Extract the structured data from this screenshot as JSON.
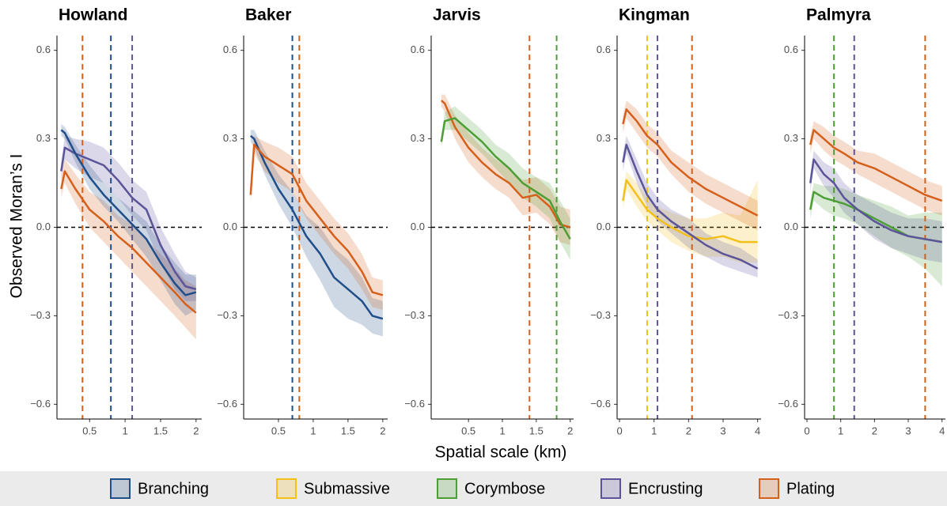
{
  "xlabel": "Spatial scale (km)",
  "ylabel": "Observed Moran’s I",
  "legend": [
    {
      "name": "Branching",
      "color": "#1f4e89"
    },
    {
      "name": "Submassive",
      "color": "#f2c018"
    },
    {
      "name": "Corymbose",
      "color": "#4d9e35"
    },
    {
      "name": "Encrusting",
      "color": "#5b5499"
    },
    {
      "name": "Plating",
      "color": "#d4601c"
    }
  ],
  "chart_data": [
    {
      "type": "line",
      "title": "Howland",
      "xlim": [
        0.04,
        2.08
      ],
      "xticks": [
        0.5,
        1,
        1.5,
        2
      ],
      "ylim": [
        -0.65,
        0.65
      ],
      "yticks": [
        {
          "value": -0.6,
          "label": "−0.6"
        },
        {
          "value": -0.3,
          "label": "−0.3"
        },
        {
          "value": 0,
          "label": "0.0"
        },
        0.3,
        0.6
      ],
      "hline": 0,
      "vlines": [
        {
          "value": 0.4,
          "color": "#d4601c"
        },
        {
          "value": 0.8,
          "color": "#1f4e89"
        },
        {
          "value": 1.1,
          "color": "#5b5499"
        }
      ],
      "x": [
        0.1,
        0.15,
        0.3,
        0.5,
        0.7,
        0.9,
        1.1,
        1.3,
        1.5,
        1.7,
        1.85,
        2.0
      ],
      "series": [
        {
          "name": "Plating",
          "color": "#d4601c",
          "values": [
            0.13,
            0.19,
            0.13,
            0.06,
            0.02,
            -0.03,
            -0.07,
            -0.12,
            -0.17,
            -0.22,
            -0.26,
            -0.29
          ],
          "lower": [
            0.1,
            0.15,
            0.08,
            0.0,
            -0.05,
            -0.1,
            -0.15,
            -0.2,
            -0.25,
            -0.3,
            -0.34,
            -0.38
          ],
          "upper": [
            0.16,
            0.23,
            0.18,
            0.12,
            0.09,
            0.04,
            0.01,
            -0.04,
            -0.09,
            -0.14,
            -0.18,
            -0.2
          ]
        },
        {
          "name": "Encrusting",
          "color": "#5b5499",
          "values": [
            0.19,
            0.27,
            0.25,
            0.23,
            0.21,
            0.16,
            0.1,
            0.06,
            -0.06,
            -0.15,
            -0.2,
            -0.21
          ],
          "lower": [
            0.16,
            0.23,
            0.2,
            0.17,
            0.15,
            0.1,
            0.04,
            -0.01,
            -0.12,
            -0.21,
            -0.25,
            -0.25
          ],
          "upper": [
            0.22,
            0.31,
            0.3,
            0.29,
            0.27,
            0.22,
            0.16,
            0.12,
            0.0,
            -0.09,
            -0.15,
            -0.17
          ]
        },
        {
          "name": "Branching",
          "color": "#1f4e89",
          "values": [
            0.33,
            0.32,
            0.25,
            0.17,
            0.11,
            0.06,
            0.01,
            -0.04,
            -0.12,
            -0.19,
            -0.23,
            -0.22
          ],
          "lower": [
            0.31,
            0.3,
            0.22,
            0.13,
            0.07,
            0.02,
            -0.04,
            -0.1,
            -0.18,
            -0.26,
            -0.3,
            -0.28
          ],
          "upper": [
            0.35,
            0.34,
            0.28,
            0.21,
            0.15,
            0.1,
            0.06,
            0.02,
            -0.06,
            -0.12,
            -0.16,
            -0.16
          ]
        }
      ]
    },
    {
      "type": "line",
      "title": "Baker",
      "xlim": [
        0,
        2.07
      ],
      "xticks": [
        0.5,
        1,
        1.5,
        2
      ],
      "ylim": [
        -0.65,
        0.65
      ],
      "yticks": [
        {
          "value": -0.6,
          "label": "−0.6"
        },
        {
          "value": -0.3,
          "label": "−0.3"
        },
        {
          "value": 0,
          "label": "0.0"
        },
        0.3,
        0.6
      ],
      "hline": 0,
      "vlines": [
        {
          "value": 0.7,
          "color": "#1f4e89"
        },
        {
          "value": 0.8,
          "color": "#d4601c"
        }
      ],
      "x": [
        0.1,
        0.15,
        0.3,
        0.5,
        0.7,
        0.9,
        1.1,
        1.3,
        1.5,
        1.7,
        1.85,
        2.0
      ],
      "series": [
        {
          "name": "Branching",
          "color": "#1f4e89",
          "values": [
            0.31,
            0.3,
            0.22,
            0.13,
            0.06,
            -0.03,
            -0.09,
            -0.17,
            -0.21,
            -0.25,
            -0.3,
            -0.31
          ],
          "lower": [
            0.29,
            0.27,
            0.18,
            0.08,
            0.0,
            -0.1,
            -0.18,
            -0.27,
            -0.31,
            -0.33,
            -0.36,
            -0.37
          ],
          "upper": [
            0.33,
            0.33,
            0.26,
            0.18,
            0.12,
            0.04,
            0.0,
            -0.07,
            -0.11,
            -0.17,
            -0.24,
            -0.25
          ]
        },
        {
          "name": "Plating",
          "color": "#d4601c",
          "values": [
            0.11,
            0.28,
            0.24,
            0.21,
            0.18,
            0.09,
            0.03,
            -0.03,
            -0.08,
            -0.15,
            -0.22,
            -0.23
          ],
          "lower": [
            0.08,
            0.25,
            0.19,
            0.15,
            0.12,
            0.03,
            -0.03,
            -0.09,
            -0.14,
            -0.21,
            -0.27,
            -0.28
          ],
          "upper": [
            0.14,
            0.31,
            0.29,
            0.27,
            0.24,
            0.15,
            0.09,
            0.03,
            -0.02,
            -0.09,
            -0.17,
            -0.18
          ]
        }
      ]
    },
    {
      "type": "line",
      "title": "Jarvis",
      "xlim": [
        -0.05,
        2.05
      ],
      "xticks": [
        0.5,
        1,
        1.5,
        2
      ],
      "ylim": [
        -0.65,
        0.65
      ],
      "yticks": [
        {
          "value": -0.6,
          "label": "−0.6"
        },
        {
          "value": -0.3,
          "label": "−0.3"
        },
        {
          "value": 0,
          "label": "0.0"
        },
        0.3,
        0.6
      ],
      "hline": 0,
      "vlines": [
        {
          "value": 1.4,
          "color": "#d4601c"
        },
        {
          "value": 1.8,
          "color": "#4d9e35"
        }
      ],
      "x": [
        0.1,
        0.15,
        0.3,
        0.5,
        0.7,
        0.9,
        1.1,
        1.3,
        1.5,
        1.7,
        1.85,
        2.0
      ],
      "series": [
        {
          "name": "Plating",
          "color": "#d4601c",
          "values": [
            0.43,
            0.42,
            0.34,
            0.27,
            0.22,
            0.18,
            0.15,
            0.1,
            0.11,
            0.07,
            0.01,
            0.0
          ],
          "lower": [
            0.41,
            0.39,
            0.3,
            0.22,
            0.17,
            0.13,
            0.1,
            0.04,
            0.05,
            0.01,
            -0.05,
            -0.06
          ],
          "upper": [
            0.45,
            0.45,
            0.38,
            0.32,
            0.27,
            0.23,
            0.2,
            0.16,
            0.17,
            0.13,
            0.07,
            0.06
          ]
        },
        {
          "name": "Corymbose",
          "color": "#4d9e35",
          "values": [
            0.29,
            0.36,
            0.37,
            0.33,
            0.29,
            0.24,
            0.2,
            0.15,
            0.12,
            0.09,
            0.02,
            -0.04
          ],
          "lower": [
            0.27,
            0.33,
            0.33,
            0.29,
            0.25,
            0.2,
            0.15,
            0.1,
            0.07,
            0.03,
            -0.05,
            -0.11
          ],
          "upper": [
            0.31,
            0.39,
            0.41,
            0.37,
            0.33,
            0.28,
            0.25,
            0.2,
            0.17,
            0.15,
            0.09,
            0.03
          ]
        }
      ]
    },
    {
      "type": "line",
      "title": "Kingman",
      "xlim": [
        -0.07,
        4.1
      ],
      "xticks": [
        0,
        1,
        2,
        3,
        4
      ],
      "ylim": [
        -0.65,
        0.65
      ],
      "yticks": [
        {
          "value": -0.6,
          "label": "−0.6"
        },
        {
          "value": -0.3,
          "label": "−0.3"
        },
        {
          "value": 0,
          "label": "0.0"
        },
        0.3,
        0.6
      ],
      "hline": 0,
      "vlines": [
        {
          "value": 0.8,
          "color": "#f2c018"
        },
        {
          "value": 1.1,
          "color": "#5b5499"
        },
        {
          "value": 2.1,
          "color": "#d4601c"
        }
      ],
      "x": [
        0.1,
        0.2,
        0.5,
        0.8,
        1.1,
        1.5,
        2,
        2.5,
        3,
        3.5,
        4
      ],
      "series": [
        {
          "name": "Submassive",
          "color": "#f2c018",
          "values": [
            0.09,
            0.16,
            0.11,
            0.06,
            0.03,
            0.0,
            -0.03,
            -0.04,
            -0.03,
            -0.05,
            -0.05
          ],
          "lower": [
            0.06,
            0.13,
            0.07,
            0.02,
            -0.01,
            -0.05,
            -0.08,
            -0.1,
            -0.1,
            -0.12,
            -0.12
          ],
          "upper": [
            0.12,
            0.19,
            0.15,
            0.1,
            0.07,
            0.05,
            0.03,
            0.03,
            0.05,
            0.04,
            0.16
          ]
        },
        {
          "name": "Encrusting",
          "color": "#5b5499",
          "values": [
            0.22,
            0.28,
            0.19,
            0.11,
            0.06,
            0.02,
            -0.02,
            -0.06,
            -0.09,
            -0.11,
            -0.14
          ],
          "lower": [
            0.19,
            0.25,
            0.15,
            0.07,
            0.02,
            -0.02,
            -0.07,
            -0.1,
            -0.13,
            -0.15,
            -0.17
          ],
          "upper": [
            0.25,
            0.31,
            0.23,
            0.15,
            0.1,
            0.06,
            0.03,
            -0.02,
            -0.05,
            -0.07,
            -0.11
          ]
        },
        {
          "name": "Plating",
          "color": "#d4601c",
          "values": [
            0.35,
            0.4,
            0.36,
            0.31,
            0.28,
            0.22,
            0.17,
            0.13,
            0.1,
            0.07,
            0.04
          ],
          "lower": [
            0.32,
            0.37,
            0.32,
            0.27,
            0.24,
            0.18,
            0.12,
            0.08,
            0.05,
            0.02,
            -0.01
          ],
          "upper": [
            0.38,
            0.43,
            0.4,
            0.35,
            0.32,
            0.26,
            0.22,
            0.18,
            0.15,
            0.12,
            0.09
          ]
        }
      ]
    },
    {
      "type": "line",
      "title": "Palmyra",
      "xlim": [
        -0.07,
        4.1
      ],
      "xticks": [
        0,
        1,
        2,
        3,
        4
      ],
      "ylim": [
        -0.65,
        0.65
      ],
      "yticks": [
        {
          "value": -0.6,
          "label": "−0.6"
        },
        {
          "value": -0.3,
          "label": "−0.3"
        },
        {
          "value": 0,
          "label": "0.0"
        },
        0.3,
        0.6
      ],
      "hline": 0,
      "vlines": [
        {
          "value": 0.8,
          "color": "#4d9e35"
        },
        {
          "value": 1.4,
          "color": "#5b5499"
        },
        {
          "value": 3.5,
          "color": "#d4601c"
        }
      ],
      "x": [
        0.1,
        0.2,
        0.5,
        0.8,
        1.1,
        1.5,
        2,
        2.5,
        3,
        3.5,
        4
      ],
      "series": [
        {
          "name": "Corymbose",
          "color": "#4d9e35",
          "values": [
            0.06,
            0.12,
            0.1,
            0.09,
            0.08,
            0.06,
            0.03,
            0.0,
            -0.03,
            -0.04,
            -0.05
          ],
          "lower": [
            0.03,
            0.09,
            0.06,
            0.04,
            0.03,
            0.01,
            -0.03,
            -0.07,
            -0.1,
            -0.14,
            -0.2
          ],
          "upper": [
            0.09,
            0.15,
            0.14,
            0.14,
            0.13,
            0.11,
            0.09,
            0.07,
            0.04,
            0.05,
            0.05
          ]
        },
        {
          "name": "Encrusting",
          "color": "#5b5499",
          "values": [
            0.15,
            0.23,
            0.18,
            0.15,
            0.1,
            0.06,
            0.02,
            -0.01,
            -0.03,
            -0.04,
            -0.05
          ],
          "lower": [
            0.12,
            0.2,
            0.14,
            0.1,
            0.05,
            0.01,
            -0.04,
            -0.07,
            -0.09,
            -0.11,
            -0.12
          ],
          "upper": [
            0.18,
            0.26,
            0.22,
            0.2,
            0.15,
            0.11,
            0.08,
            0.05,
            0.03,
            0.03,
            0.02
          ]
        },
        {
          "name": "Plating",
          "color": "#d4601c",
          "values": [
            0.28,
            0.33,
            0.3,
            0.27,
            0.25,
            0.22,
            0.2,
            0.17,
            0.14,
            0.11,
            0.09
          ],
          "lower": [
            0.25,
            0.3,
            0.26,
            0.23,
            0.21,
            0.18,
            0.15,
            0.12,
            0.09,
            0.06,
            0.04
          ],
          "upper": [
            0.31,
            0.36,
            0.34,
            0.31,
            0.29,
            0.26,
            0.25,
            0.22,
            0.19,
            0.16,
            0.14
          ]
        }
      ]
    }
  ]
}
